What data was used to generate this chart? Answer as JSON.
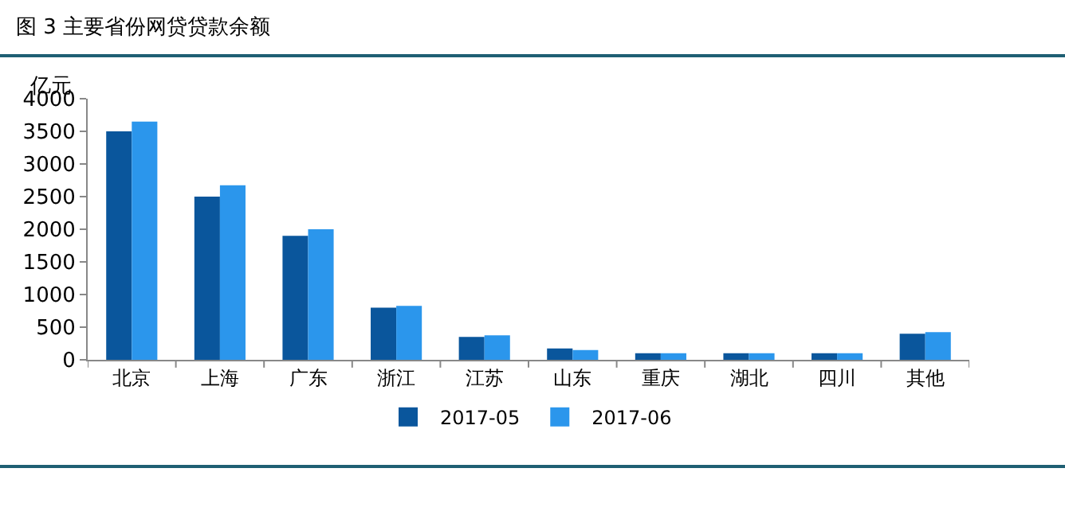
{
  "chart_data": {
    "type": "bar",
    "title": "图 3  主要省份网贷贷款余额",
    "ylabel": "亿元",
    "categories": [
      "北京",
      "上海",
      "广东",
      "浙江",
      "江苏",
      "山东",
      "重庆",
      "湖北",
      "四川",
      "其他"
    ],
    "series": [
      {
        "name": "2017-05",
        "color": "#0a569c",
        "values": [
          3500,
          2500,
          1900,
          800,
          350,
          175,
          100,
          100,
          100,
          400
        ]
      },
      {
        "name": "2017-06",
        "color": "#2b96ec",
        "values": [
          3650,
          2675,
          2000,
          825,
          375,
          150,
          100,
          100,
          100,
          425
        ]
      }
    ],
    "ylim": [
      0,
      4000
    ],
    "yticks": [
      0,
      500,
      1000,
      1500,
      2000,
      2500,
      3000,
      3500,
      4000
    ],
    "grid": false,
    "legend": "bottom"
  }
}
